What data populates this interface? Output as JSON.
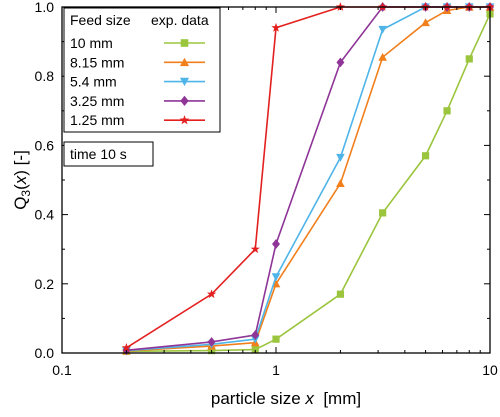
{
  "chart_data": {
    "type": "line",
    "xscale": "log",
    "xlim": [
      0.1,
      10
    ],
    "ylim": [
      0,
      1
    ],
    "x_ticks": [
      {
        "value": 0.1,
        "label": "0.1"
      },
      {
        "value": 1,
        "label": "1"
      },
      {
        "value": 10,
        "label": "10"
      }
    ],
    "y_ticks": [
      {
        "value": 0,
        "label": "0.0"
      },
      {
        "value": 0.2,
        "label": "0.2"
      },
      {
        "value": 0.4,
        "label": "0.4"
      },
      {
        "value": 0.6,
        "label": "0.6"
      },
      {
        "value": 0.8,
        "label": "0.8"
      },
      {
        "value": 1,
        "label": "1.0"
      }
    ],
    "xlabel": {
      "main": "particle size ",
      "var": "x",
      "unit": "  [mm]"
    },
    "ylabel": {
      "main": "Q",
      "sub": "3",
      "rest": "(",
      "var": "x",
      "end": ") [-]"
    },
    "grid": false,
    "legend": {
      "placement": "top-left",
      "header_left": "Feed size",
      "header_right": "exp. data"
    },
    "annotation": "time 10 s",
    "series": [
      {
        "name": "10 mm",
        "color": "#9bc53d",
        "marker": "square",
        "x": [
          0.2,
          0.5,
          0.8,
          1.0,
          2.0,
          3.15,
          5.0,
          6.3,
          8.0,
          10.0
        ],
        "y": [
          0.005,
          0.007,
          0.01,
          0.04,
          0.17,
          0.405,
          0.57,
          0.7,
          0.85,
          0.98
        ]
      },
      {
        "name": "8.15 mm",
        "color": "#f07f1c",
        "marker": "triangle-up",
        "x": [
          0.2,
          0.5,
          0.8,
          1.0,
          2.0,
          3.15,
          5.0,
          6.3,
          8.0,
          10.0
        ],
        "y": [
          0.006,
          0.02,
          0.03,
          0.2,
          0.49,
          0.855,
          0.955,
          0.99,
          1.0,
          1.0
        ]
      },
      {
        "name": "5.4 mm",
        "color": "#4fb5e8",
        "marker": "triangle-down",
        "x": [
          0.2,
          0.5,
          0.8,
          1.0,
          2.0,
          3.15,
          5.0,
          6.3,
          8.0,
          10.0
        ],
        "y": [
          0.007,
          0.025,
          0.04,
          0.22,
          0.565,
          0.935,
          1.0,
          1.0,
          1.0,
          1.0
        ]
      },
      {
        "name": "3.25 mm",
        "color": "#8e3597",
        "marker": "diamond",
        "x": [
          0.2,
          0.5,
          0.8,
          1.0,
          2.0,
          3.15,
          5.0,
          6.3,
          8.0,
          10.0
        ],
        "y": [
          0.008,
          0.032,
          0.052,
          0.315,
          0.84,
          1.0,
          1.0,
          1.0,
          1.0,
          1.0
        ]
      },
      {
        "name": "1.25 mm",
        "color": "#e3201f",
        "marker": "star",
        "x": [
          0.2,
          0.5,
          0.8,
          1.0,
          2.0,
          3.15,
          5.0,
          6.3,
          8.0,
          10.0
        ],
        "y": [
          0.015,
          0.17,
          0.3,
          0.94,
          1.0,
          1.0,
          1.0,
          1.0,
          1.0,
          1.0
        ]
      }
    ]
  }
}
